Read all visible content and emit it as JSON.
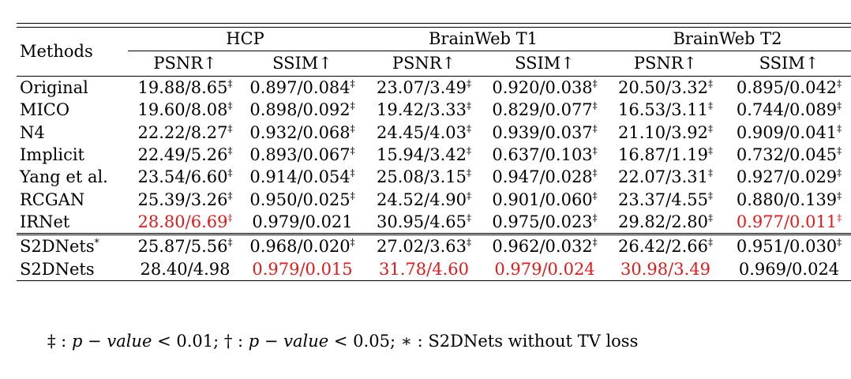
{
  "header": {
    "methods_label": "Methods",
    "groups": [
      "HCP",
      "BrainWeb T1",
      "BrainWeb T2"
    ],
    "metrics": [
      "PSNR↑",
      "SSIM↑",
      "PSNR↑",
      "SSIM↑",
      "PSNR↑",
      "SSIM↑"
    ]
  },
  "rows": [
    {
      "method": "Original",
      "cells": [
        {
          "v": "19.88/8.65",
          "sig": "‡",
          "hl": false
        },
        {
          "v": "0.897/0.084",
          "sig": "‡",
          "hl": false
        },
        {
          "v": "23.07/3.49",
          "sig": "‡",
          "hl": false
        },
        {
          "v": "0.920/0.038",
          "sig": "‡",
          "hl": false
        },
        {
          "v": "20.50/3.32",
          "sig": "‡",
          "hl": false
        },
        {
          "v": "0.895/0.042",
          "sig": "‡",
          "hl": false
        }
      ]
    },
    {
      "method": "MICO",
      "cells": [
        {
          "v": "19.60/8.08",
          "sig": "‡",
          "hl": false
        },
        {
          "v": "0.898/0.092",
          "sig": "‡",
          "hl": false
        },
        {
          "v": "19.42/3.33",
          "sig": "‡",
          "hl": false
        },
        {
          "v": "0.829/0.077",
          "sig": "‡",
          "hl": false
        },
        {
          "v": "16.53/3.11",
          "sig": "‡",
          "hl": false
        },
        {
          "v": "0.744/0.089",
          "sig": "‡",
          "hl": false
        }
      ]
    },
    {
      "method": "N4",
      "cells": [
        {
          "v": "22.22/8.27",
          "sig": "‡",
          "hl": false
        },
        {
          "v": "0.932/0.068",
          "sig": "‡",
          "hl": false
        },
        {
          "v": "24.45/4.03",
          "sig": "‡",
          "hl": false
        },
        {
          "v": "0.939/0.037",
          "sig": "‡",
          "hl": false
        },
        {
          "v": "21.10/3.92",
          "sig": "‡",
          "hl": false
        },
        {
          "v": "0.909/0.041",
          "sig": "‡",
          "hl": false
        }
      ]
    },
    {
      "method": "Implicit",
      "cells": [
        {
          "v": "22.49/5.26",
          "sig": "‡",
          "hl": false
        },
        {
          "v": "0.893/0.067",
          "sig": "‡",
          "hl": false
        },
        {
          "v": "15.94/3.42",
          "sig": "‡",
          "hl": false
        },
        {
          "v": "0.637/0.103",
          "sig": "‡",
          "hl": false
        },
        {
          "v": "16.87/1.19",
          "sig": "‡",
          "hl": false
        },
        {
          "v": "0.732/0.045",
          "sig": "‡",
          "hl": false
        }
      ]
    },
    {
      "method": "Yang et al.",
      "cells": [
        {
          "v": "23.54/6.60",
          "sig": "‡",
          "hl": false
        },
        {
          "v": "0.914/0.054",
          "sig": "‡",
          "hl": false
        },
        {
          "v": "25.08/3.15",
          "sig": "‡",
          "hl": false
        },
        {
          "v": "0.947/0.028",
          "sig": "‡",
          "hl": false
        },
        {
          "v": "22.07/3.31",
          "sig": "‡",
          "hl": false
        },
        {
          "v": "0.927/0.029",
          "sig": "‡",
          "hl": false
        }
      ]
    },
    {
      "method": "RCGAN",
      "cells": [
        {
          "v": "25.39/3.26",
          "sig": "‡",
          "hl": false
        },
        {
          "v": "0.950/0.025",
          "sig": "‡",
          "hl": false
        },
        {
          "v": "24.52/4.90",
          "sig": "‡",
          "hl": false
        },
        {
          "v": "0.901/0.060",
          "sig": "‡",
          "hl": false
        },
        {
          "v": "23.37/4.55",
          "sig": "‡",
          "hl": false
        },
        {
          "v": "0.880/0.139",
          "sig": "‡",
          "hl": false
        }
      ]
    },
    {
      "method": "IRNet",
      "cells": [
        {
          "v": "28.80/6.69",
          "sig": "‡",
          "hl": true
        },
        {
          "v": "0.979/0.021",
          "sig": "",
          "hl": false
        },
        {
          "v": "30.95/4.65",
          "sig": "‡",
          "hl": false
        },
        {
          "v": "0.975/0.023",
          "sig": "‡",
          "hl": false
        },
        {
          "v": "29.82/2.80",
          "sig": "‡",
          "hl": false
        },
        {
          "v": "0.977/0.011",
          "sig": "‡",
          "hl": true
        }
      ]
    },
    {
      "method": "S2DNets",
      "method_sup": "*",
      "cells": [
        {
          "v": "25.87/5.56",
          "sig": "‡",
          "hl": false
        },
        {
          "v": "0.968/0.020",
          "sig": "‡",
          "hl": false
        },
        {
          "v": "27.02/3.63",
          "sig": "‡",
          "hl": false
        },
        {
          "v": "0.962/0.032",
          "sig": "‡",
          "hl": false
        },
        {
          "v": "26.42/2.66",
          "sig": "‡",
          "hl": false
        },
        {
          "v": "0.951/0.030",
          "sig": "‡",
          "hl": false
        }
      ]
    },
    {
      "method": "S2DNets",
      "cells": [
        {
          "v": "28.40/4.98",
          "sig": "",
          "hl": false
        },
        {
          "v": "0.979/0.015",
          "sig": "",
          "hl": true
        },
        {
          "v": "31.78/4.60",
          "sig": "",
          "hl": true
        },
        {
          "v": "0.979/0.024",
          "sig": "",
          "hl": true
        },
        {
          "v": "30.98/3.49",
          "sig": "",
          "hl": true
        },
        {
          "v": "0.969/0.024",
          "sig": "",
          "hl": false
        }
      ]
    }
  ],
  "footnote": {
    "s1": "‡ : ",
    "pv1": "p − value",
    "s2": " < 0.01; † : ",
    "pv2": "p − value",
    "s3": " < 0.05; ∗ : S2DNets without TV loss"
  },
  "colors": {
    "highlight": "#e21a1a"
  }
}
